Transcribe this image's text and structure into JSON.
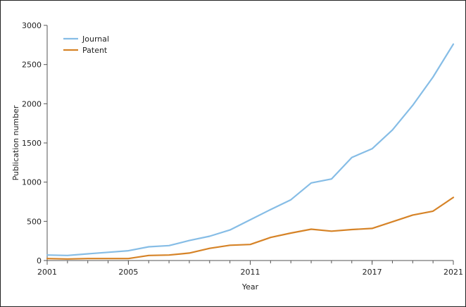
{
  "chart_data": {
    "type": "line",
    "xlabel": "Year",
    "ylabel": "Publication number",
    "xlim": [
      2001,
      2021
    ],
    "ylim": [
      0,
      3000
    ],
    "x_ticks": [
      2001,
      2005,
      2011,
      2017,
      2021
    ],
    "y_ticks": [
      0,
      500,
      1000,
      1500,
      2000,
      2500,
      3000
    ],
    "x_tick_labels": [
      "2001",
      "2005",
      "2011",
      "2017",
      "2021"
    ],
    "y_tick_labels": [
      "0",
      "500",
      "1000",
      "1500",
      "2000",
      "2500",
      "3000"
    ],
    "grid": false,
    "legend_position": "top-left",
    "x": [
      2001,
      2002,
      2003,
      2004,
      2005,
      2006,
      2007,
      2008,
      2009,
      2010,
      2011,
      2012,
      2013,
      2014,
      2015,
      2016,
      2017,
      2018,
      2019,
      2020,
      2021
    ],
    "series": [
      {
        "name": "Journal",
        "color": "#86bde6",
        "values": [
          70,
          65,
          85,
          105,
          125,
          175,
          190,
          255,
          310,
          390,
          520,
          650,
          775,
          990,
          1040,
          1315,
          1425,
          1665,
          1980,
          2340,
          2760
        ]
      },
      {
        "name": "Patent",
        "color": "#d68327",
        "values": [
          25,
          20,
          25,
          25,
          25,
          65,
          70,
          95,
          155,
          195,
          205,
          295,
          350,
          400,
          375,
          395,
          410,
          495,
          580,
          630,
          805
        ]
      }
    ]
  }
}
